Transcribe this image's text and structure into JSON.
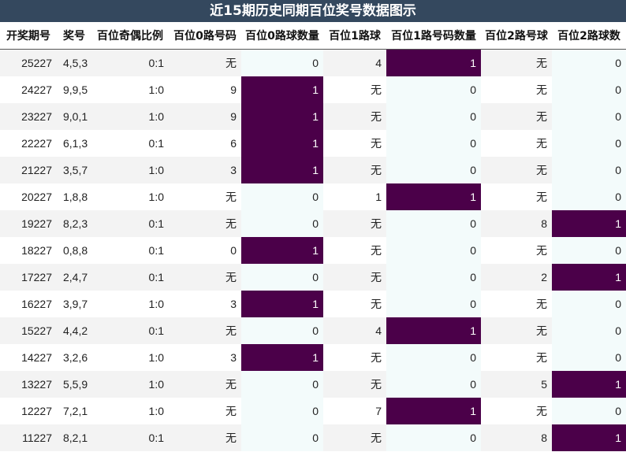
{
  "title": "近15期历史同期百位奖号数据图示",
  "colors": {
    "title_bg": "#34485e",
    "highlight": "#4b0049",
    "row_alt": "#f3f3f3",
    "count_bg": "#f3fbfb"
  },
  "headers": [
    "开奖期号",
    "奖号",
    "百位奇偶比例",
    "百位0路号码",
    "百位0路球数量",
    "百位1路球",
    "百位1路号码数量",
    "百位2路号球",
    "百位2路球数"
  ],
  "rows": [
    {
      "issue": "25227",
      "num": "4,5,3",
      "ratio": "0:1",
      "r0": "无",
      "c0": "0",
      "r1": "4",
      "c1": "1",
      "r2": "无",
      "c2": "0"
    },
    {
      "issue": "24227",
      "num": "9,9,5",
      "ratio": "1:0",
      "r0": "9",
      "c0": "1",
      "r1": "无",
      "c1": "0",
      "r2": "无",
      "c2": "0"
    },
    {
      "issue": "23227",
      "num": "9,0,1",
      "ratio": "1:0",
      "r0": "9",
      "c0": "1",
      "r1": "无",
      "c1": "0",
      "r2": "无",
      "c2": "0"
    },
    {
      "issue": "22227",
      "num": "6,1,3",
      "ratio": "0:1",
      "r0": "6",
      "c0": "1",
      "r1": "无",
      "c1": "0",
      "r2": "无",
      "c2": "0"
    },
    {
      "issue": "21227",
      "num": "3,5,7",
      "ratio": "1:0",
      "r0": "3",
      "c0": "1",
      "r1": "无",
      "c1": "0",
      "r2": "无",
      "c2": "0"
    },
    {
      "issue": "20227",
      "num": "1,8,8",
      "ratio": "1:0",
      "r0": "无",
      "c0": "0",
      "r1": "1",
      "c1": "1",
      "r2": "无",
      "c2": "0"
    },
    {
      "issue": "19227",
      "num": "8,2,3",
      "ratio": "0:1",
      "r0": "无",
      "c0": "0",
      "r1": "无",
      "c1": "0",
      "r2": "8",
      "c2": "1"
    },
    {
      "issue": "18227",
      "num": "0,8,8",
      "ratio": "0:1",
      "r0": "0",
      "c0": "1",
      "r1": "无",
      "c1": "0",
      "r2": "无",
      "c2": "0"
    },
    {
      "issue": "17227",
      "num": "2,4,7",
      "ratio": "0:1",
      "r0": "无",
      "c0": "0",
      "r1": "无",
      "c1": "0",
      "r2": "2",
      "c2": "1"
    },
    {
      "issue": "16227",
      "num": "3,9,7",
      "ratio": "1:0",
      "r0": "3",
      "c0": "1",
      "r1": "无",
      "c1": "0",
      "r2": "无",
      "c2": "0"
    },
    {
      "issue": "15227",
      "num": "4,4,2",
      "ratio": "0:1",
      "r0": "无",
      "c0": "0",
      "r1": "4",
      "c1": "1",
      "r2": "无",
      "c2": "0"
    },
    {
      "issue": "14227",
      "num": "3,2,6",
      "ratio": "1:0",
      "r0": "3",
      "c0": "1",
      "r1": "无",
      "c1": "0",
      "r2": "无",
      "c2": "0"
    },
    {
      "issue": "13227",
      "num": "5,5,9",
      "ratio": "1:0",
      "r0": "无",
      "c0": "0",
      "r1": "无",
      "c1": "0",
      "r2": "5",
      "c2": "1"
    },
    {
      "issue": "12227",
      "num": "7,2,1",
      "ratio": "1:0",
      "r0": "无",
      "c0": "0",
      "r1": "7",
      "c1": "1",
      "r2": "无",
      "c2": "0"
    },
    {
      "issue": "11227",
      "num": "8,2,1",
      "ratio": "0:1",
      "r0": "无",
      "c0": "0",
      "r1": "无",
      "c1": "0",
      "r2": "8",
      "c2": "1"
    }
  ]
}
